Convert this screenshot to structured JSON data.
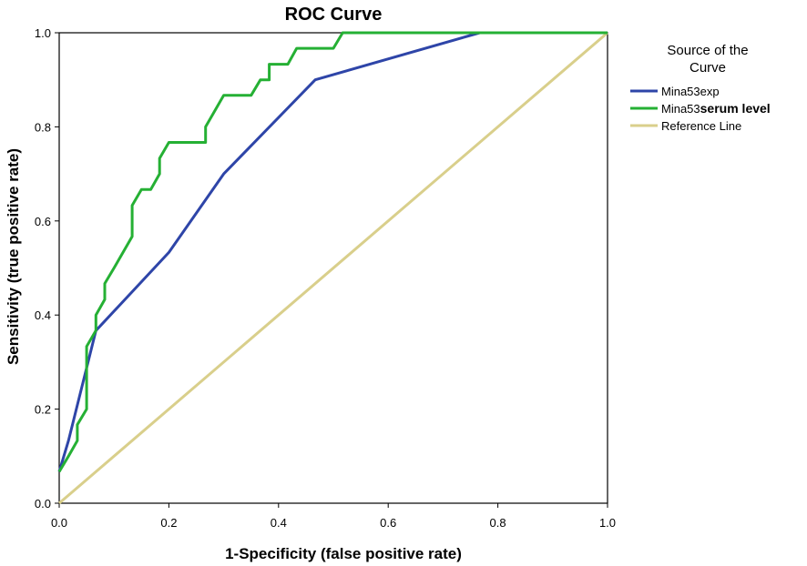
{
  "chart_data": {
    "type": "line",
    "title": "ROC Curve",
    "xlabel": "1-Specificity (false positive rate)",
    "ylabel": "Sensitivity (true positive rate)",
    "xlim": [
      0,
      1
    ],
    "ylim": [
      0,
      1
    ],
    "xticks": [
      "0.0",
      "0.2",
      "0.4",
      "0.6",
      "0.8",
      "1.0"
    ],
    "yticks": [
      "0.0",
      "0.2",
      "0.4",
      "0.6",
      "0.8",
      "1.0"
    ],
    "grid": false,
    "legend": {
      "title_line1": "Source of the",
      "title_line2": "Curve",
      "position": "right"
    },
    "series": [
      {
        "name": "Mina53exp",
        "label_prefix": "Mina53exp",
        "label_suffix": "",
        "color": "#2e45a8",
        "points": [
          [
            0,
            0.067
          ],
          [
            0.017,
            0.133
          ],
          [
            0.067,
            0.367
          ],
          [
            0.2,
            0.533
          ],
          [
            0.3,
            0.7
          ],
          [
            0.467,
            0.9
          ],
          [
            0.767,
            1.0
          ],
          [
            1.0,
            1.0
          ]
        ]
      },
      {
        "name": "Mina53 serum level",
        "label_prefix": "Mina53",
        "label_suffix": "serum level",
        "color": "#25b034",
        "points": [
          [
            0,
            0.067
          ],
          [
            0.017,
            0.1
          ],
          [
            0.033,
            0.133
          ],
          [
            0.033,
            0.167
          ],
          [
            0.05,
            0.2
          ],
          [
            0.05,
            0.333
          ],
          [
            0.067,
            0.367
          ],
          [
            0.067,
            0.4
          ],
          [
            0.083,
            0.433
          ],
          [
            0.083,
            0.467
          ],
          [
            0.1,
            0.5
          ],
          [
            0.133,
            0.567
          ],
          [
            0.133,
            0.633
          ],
          [
            0.15,
            0.667
          ],
          [
            0.167,
            0.667
          ],
          [
            0.183,
            0.7
          ],
          [
            0.183,
            0.733
          ],
          [
            0.2,
            0.767
          ],
          [
            0.267,
            0.767
          ],
          [
            0.267,
            0.8
          ],
          [
            0.3,
            0.867
          ],
          [
            0.35,
            0.867
          ],
          [
            0.367,
            0.9
          ],
          [
            0.383,
            0.9
          ],
          [
            0.383,
            0.933
          ],
          [
            0.417,
            0.933
          ],
          [
            0.433,
            0.967
          ],
          [
            0.5,
            0.967
          ],
          [
            0.517,
            1.0
          ],
          [
            1.0,
            1.0
          ]
        ]
      },
      {
        "name": "Reference Line",
        "label_prefix": "Reference Line",
        "label_suffix": "",
        "color": "#d9cf8b",
        "points": [
          [
            0,
            0
          ],
          [
            1,
            1
          ]
        ]
      }
    ]
  }
}
